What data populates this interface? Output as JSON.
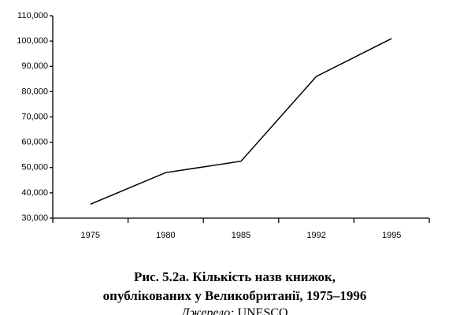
{
  "chart_data": {
    "type": "line",
    "title": [
      "Рис. 5.2а. Кількість назв книжок,",
      "опублікованих у Великобританії, 1975–1996"
    ],
    "source_label": "Джерело:",
    "source": "UNESCO",
    "categories": [
      "1975",
      "1980",
      "1985",
      "1992",
      "1995"
    ],
    "values": [
      35500,
      48000,
      52500,
      86000,
      101000
    ],
    "color": "#000000",
    "ylim": [
      30000,
      110000
    ],
    "yticks": [
      {
        "value": 30000,
        "label": "30,000"
      },
      {
        "value": 40000,
        "label": "40,000"
      },
      {
        "value": 50000,
        "label": "50,000"
      },
      {
        "value": 60000,
        "label": "60,000"
      },
      {
        "value": 70000,
        "label": "70,000"
      },
      {
        "value": 80000,
        "label": "80,000"
      },
      {
        "value": 90000,
        "label": "90,000"
      },
      {
        "value": 100000,
        "label": "100,000"
      },
      {
        "value": 110000,
        "label": "110,000"
      }
    ],
    "grid": false
  }
}
